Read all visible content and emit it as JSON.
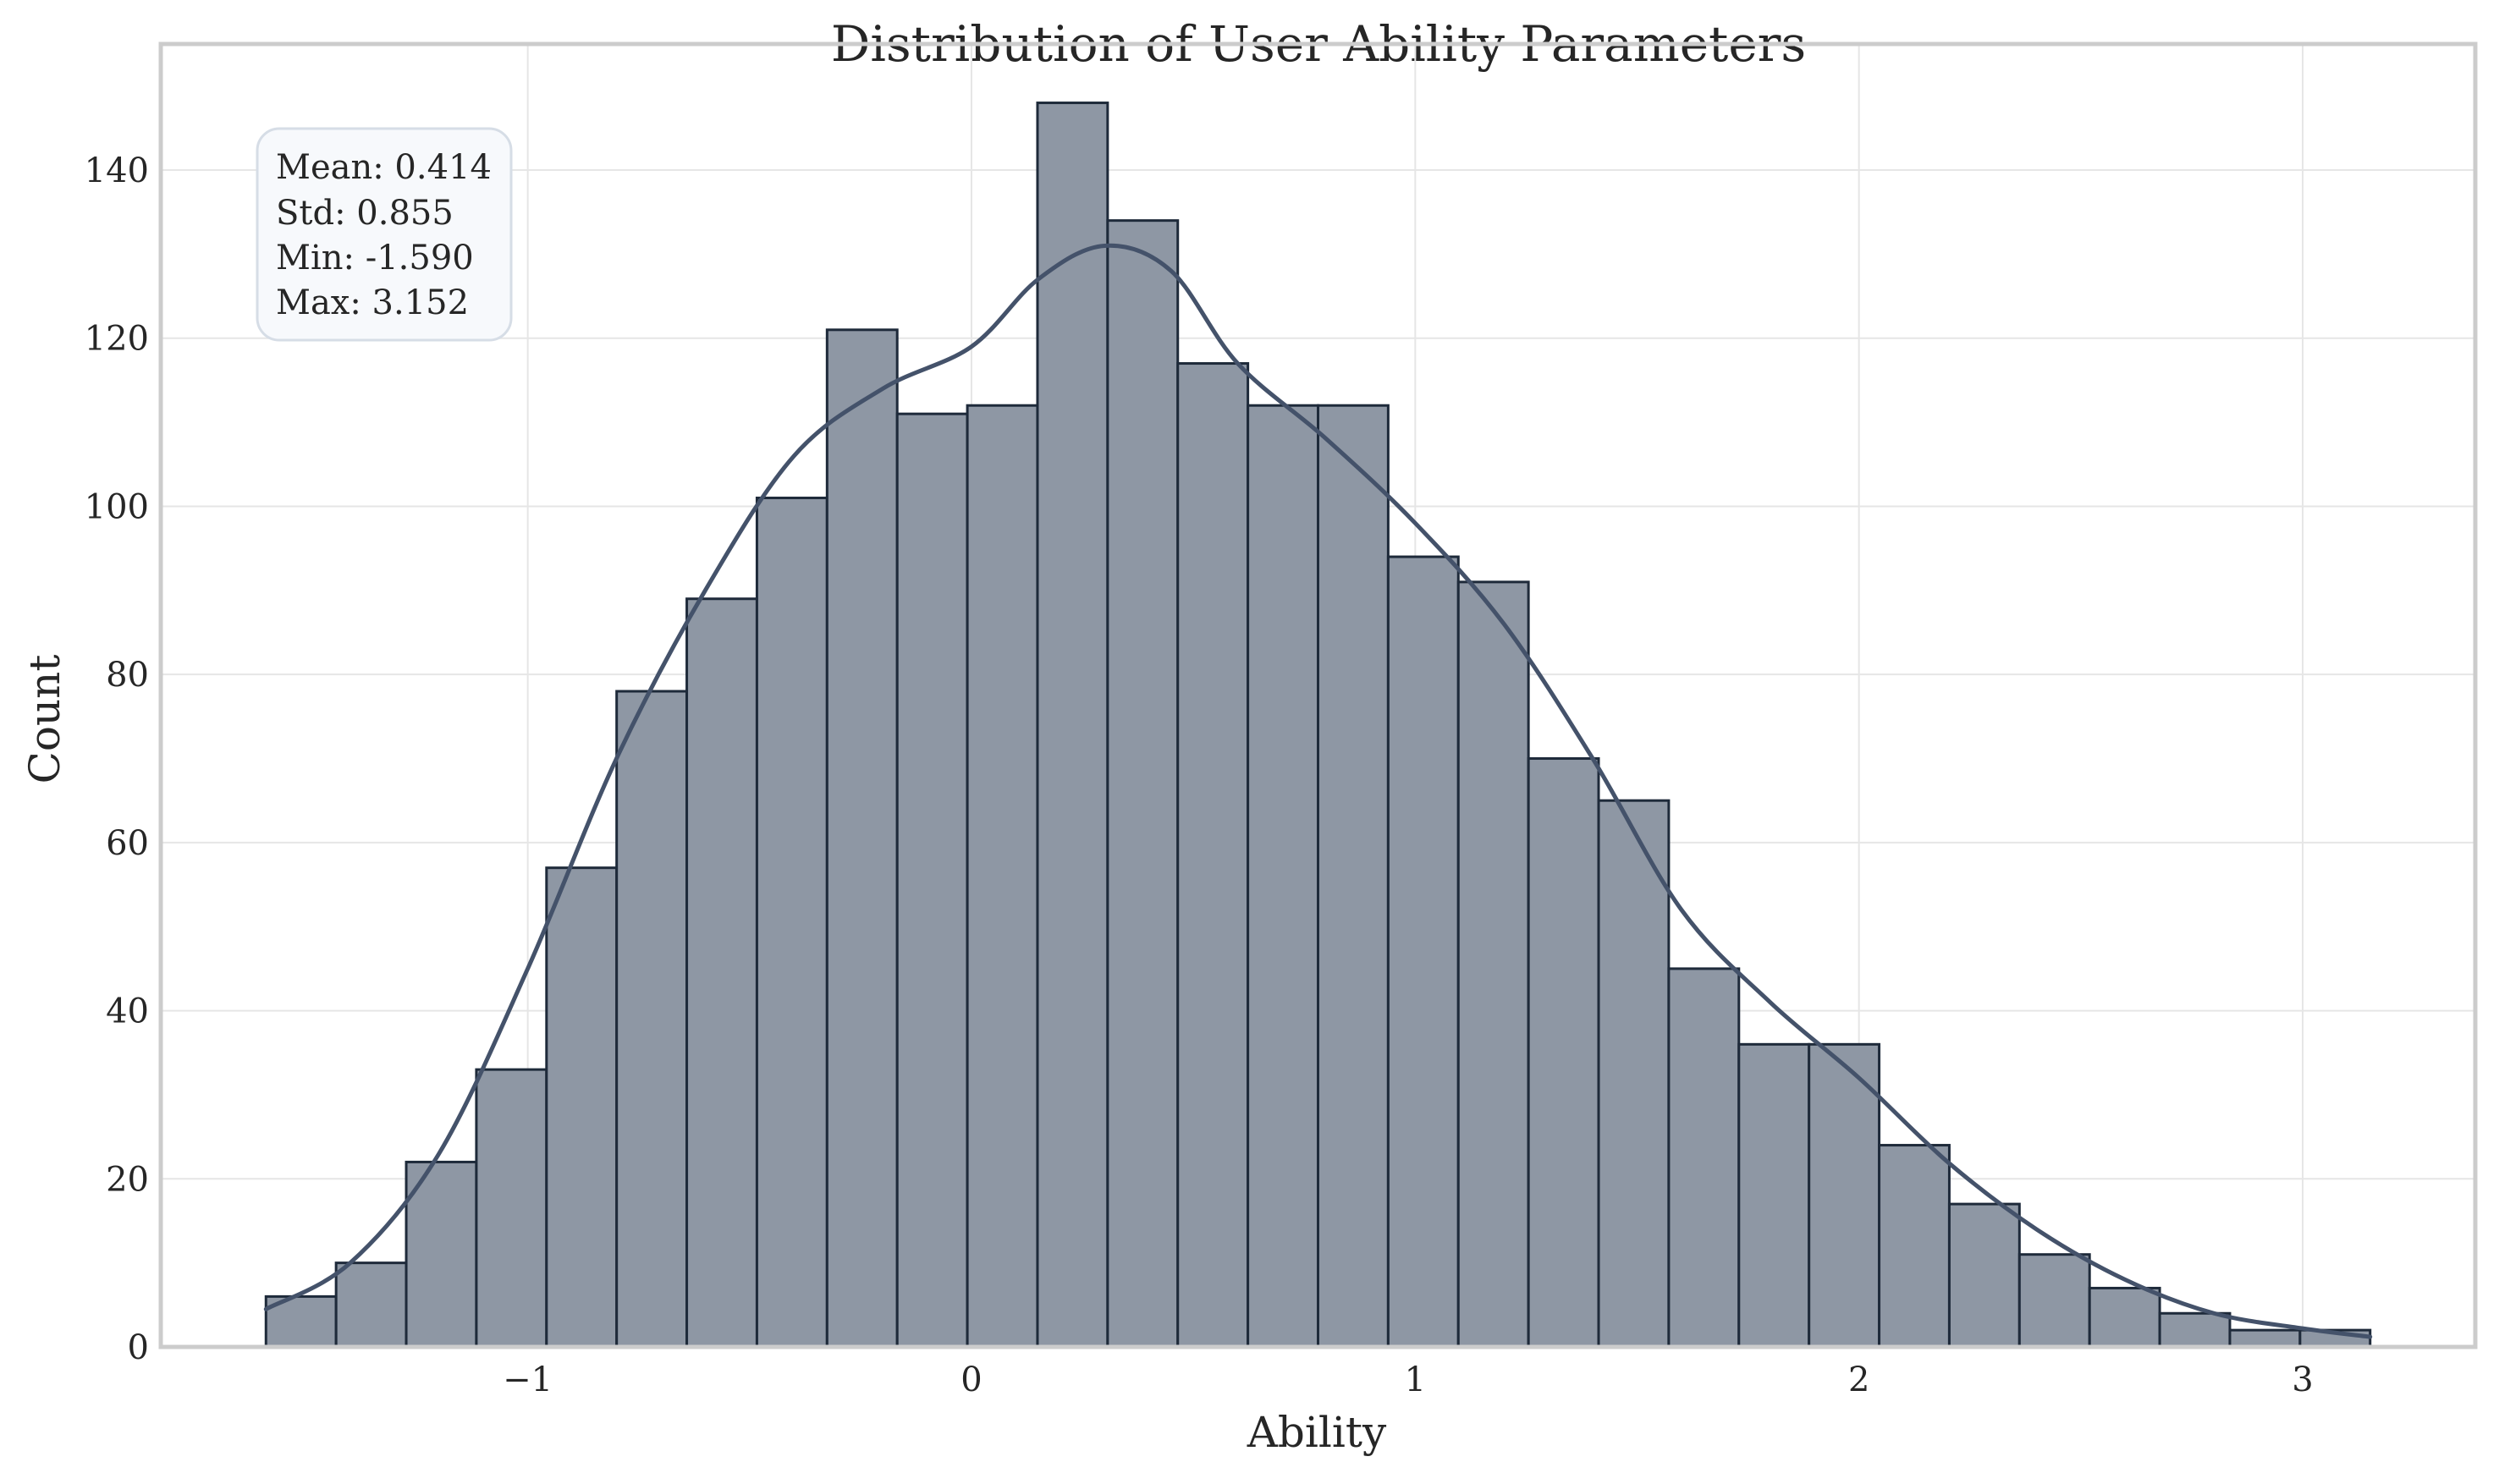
{
  "chart_data": {
    "type": "bar",
    "title": "Distribution of User Ability Parameters",
    "xlabel": "Ability",
    "ylabel": "Count",
    "xlim": [
      -1.827,
      3.389
    ],
    "ylim": [
      0,
      155
    ],
    "x_ticks": [
      {
        "value": -1,
        "label": "−1"
      },
      {
        "value": 0,
        "label": "0"
      },
      {
        "value": 1,
        "label": "1"
      },
      {
        "value": 2,
        "label": "2"
      },
      {
        "value": 3,
        "label": "3"
      }
    ],
    "y_ticks": [
      {
        "value": 0,
        "label": "0"
      },
      {
        "value": 20,
        "label": "20"
      },
      {
        "value": 40,
        "label": "40"
      },
      {
        "value": 60,
        "label": "60"
      },
      {
        "value": 80,
        "label": "80"
      },
      {
        "value": 100,
        "label": "100"
      },
      {
        "value": 120,
        "label": "120"
      },
      {
        "value": 140,
        "label": "140"
      }
    ],
    "bins": {
      "start": -1.59,
      "width": 0.15806667,
      "counts": [
        6,
        10,
        22,
        33,
        57,
        78,
        89,
        101,
        121,
        111,
        112,
        148,
        134,
        117,
        112,
        112,
        94,
        91,
        70,
        65,
        45,
        36,
        36,
        24,
        17,
        11,
        7,
        4,
        2,
        2
      ]
    },
    "kde": {
      "x": [
        -1.59,
        -1.4,
        -1.2,
        -1.0,
        -0.8,
        -0.6,
        -0.4,
        -0.2,
        0.0,
        0.15,
        0.3,
        0.45,
        0.6,
        0.8,
        1.0,
        1.2,
        1.4,
        1.6,
        1.8,
        2.0,
        2.2,
        2.4,
        2.6,
        2.8,
        3.0,
        3.152
      ],
      "y": [
        4.5,
        10,
        23,
        45,
        70,
        90,
        106,
        114,
        119,
        127,
        131,
        128,
        117,
        108,
        98,
        86,
        70,
        52,
        41,
        32,
        22,
        14,
        8,
        4,
        2.2,
        1.2
      ]
    },
    "stats": {
      "mean": "Mean: 0.414",
      "std": "Std: 0.855",
      "min": "Min: -1.590",
      "max": "Max: 3.152"
    },
    "colors": {
      "bar_fill": "#8e97a4",
      "bar_edge": "#1e2a3a",
      "kde_line": "#44526a",
      "stats_box_fill": "#f7f9fc",
      "stats_box_edge": "#d6dde6"
    },
    "grid": true,
    "legend": "none"
  }
}
